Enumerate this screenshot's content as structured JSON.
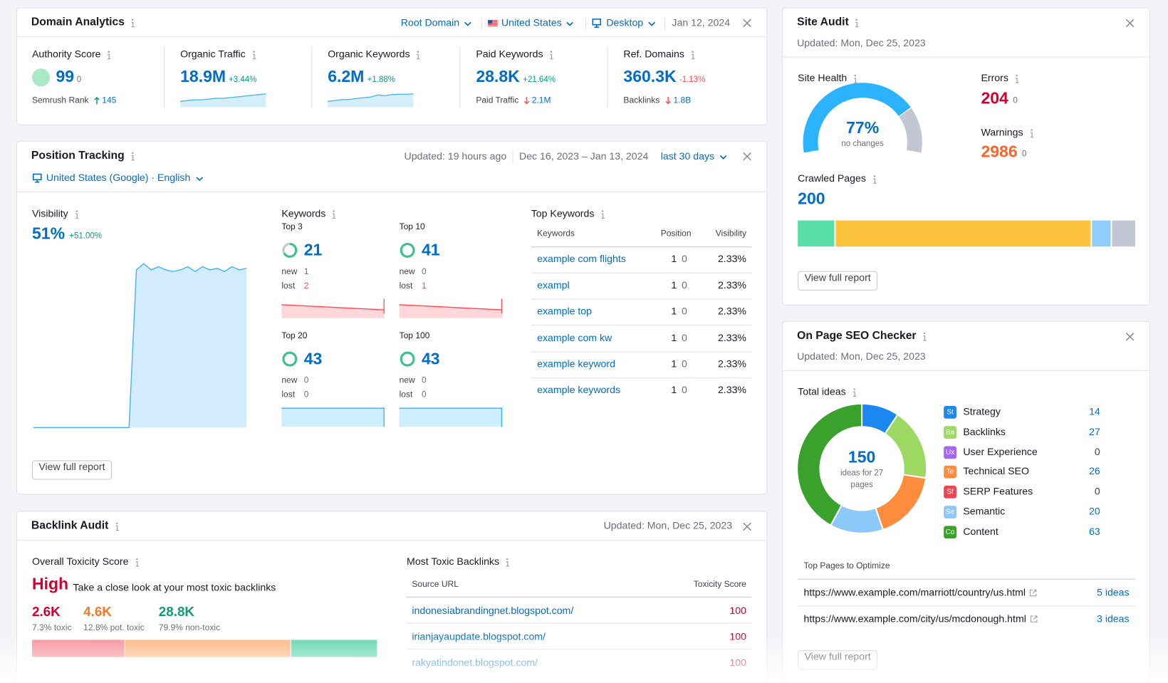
{
  "domain_analytics": {
    "title": "Domain Analytics",
    "filters": [
      "Root Domain",
      "United States",
      "Desktop"
    ],
    "date": "Jan 12, 2024",
    "metrics": [
      {
        "label": "Authority Score",
        "value": "99",
        "delta": "0",
        "sub_label": "Semrush Rank",
        "sub_direction": "up",
        "sub_value": "145"
      },
      {
        "label": "Organic Traffic",
        "value": "18.9M",
        "delta": "+3.44%",
        "trend": [
          7,
          7.5,
          8,
          8,
          8.5,
          9,
          9,
          9.5,
          10,
          10.5,
          11,
          11.5,
          12
        ]
      },
      {
        "label": "Organic Keywords",
        "value": "6.2M",
        "delta": "+1.88%",
        "trend": [
          10,
          10.2,
          10.5,
          10.5,
          10.8,
          11,
          11.2,
          11.8,
          11.6,
          11.9,
          12,
          12,
          12.1
        ]
      },
      {
        "label": "Paid Keywords",
        "value": "28.8K",
        "delta": "+21.64%",
        "sub_label": "Paid Traffic",
        "sub_direction": "down",
        "sub_value": "2.1M"
      },
      {
        "label": "Ref. Domains",
        "value": "360.3K",
        "delta": "-1.13%",
        "sub_label": "Backlinks",
        "sub_direction": "down",
        "sub_value": "1.8B"
      }
    ]
  },
  "position_tracking": {
    "title": "Position Tracking",
    "updated": "Updated: 19 hours ago",
    "date_range": "Dec 16, 2023 – Jan 13, 2024",
    "period": "last 30 days",
    "location": "United States (Google) · English",
    "visibility": {
      "label": "Visibility",
      "value": "51%",
      "delta": "+51.00%",
      "chart": {
        "values": [
          0,
          0,
          0,
          0,
          0,
          0,
          0,
          0,
          0,
          0,
          0,
          0,
          0,
          0,
          50,
          52,
          50,
          51,
          50,
          49.5,
          50,
          51,
          49.5,
          51,
          50,
          50.5,
          49.5,
          51,
          50,
          50.5
        ],
        "ylim": [
          0,
          60
        ]
      }
    },
    "keywords": {
      "label": "Keywords",
      "new_label": "new",
      "lost_label": "lost",
      "groups": [
        {
          "name": "Top 3",
          "value": "21",
          "new": "1",
          "lost": "2",
          "trend": [
            22,
            21
          ]
        },
        {
          "name": "Top 10",
          "value": "41",
          "new": "0",
          "lost": "1",
          "trend": [
            42,
            41
          ]
        },
        {
          "name": "Top 20",
          "value": "43",
          "new": "0",
          "lost": "0",
          "trend": [
            43,
            43
          ]
        },
        {
          "name": "Top 100",
          "value": "43",
          "new": "0",
          "lost": "0",
          "trend": [
            43,
            43
          ]
        }
      ]
    },
    "top_keywords": {
      "label": "Top Keywords",
      "columns": [
        "Keywords",
        "Position",
        "Visibility"
      ],
      "rows": [
        {
          "keyword": "example com flights",
          "position": "1",
          "change": "0",
          "visibility": "2.33%"
        },
        {
          "keyword": "exampl",
          "position": "1",
          "change": "0",
          "visibility": "2.33%"
        },
        {
          "keyword": "example top",
          "position": "1",
          "change": "0",
          "visibility": "2.33%"
        },
        {
          "keyword": "example com kw",
          "position": "1",
          "change": "0",
          "visibility": "2.33%"
        },
        {
          "keyword": "example keyword",
          "position": "1",
          "change": "0",
          "visibility": "2.33%"
        },
        {
          "keyword": "example keywords",
          "position": "1",
          "change": "0",
          "visibility": "2.33%"
        }
      ]
    },
    "button": "View full report"
  },
  "backlink_audit": {
    "title": "Backlink Audit",
    "updated": "Updated: Mon, Dec 25, 2023",
    "toxicity": {
      "label": "Overall Toxicity Score",
      "level": "High",
      "note": "Take a close look at your most toxic backlinks",
      "stats": [
        {
          "value": "2.6K",
          "label": "7.3% toxic",
          "color": "#d1002f"
        },
        {
          "value": "4.6K",
          "label": "12.8% pot. toxic",
          "color": "#f7782a"
        },
        {
          "value": "28.8K",
          "label": "79.9% non-toxic",
          "color": "#139a74"
        }
      ]
    },
    "most_toxic": {
      "label": "Most Toxic Backlinks",
      "columns": [
        "Source URL",
        "Toxicity Score"
      ],
      "rows": [
        {
          "url": "indonesiabrandingnet.blogspot.com/",
          "score": "100"
        },
        {
          "url": "irianjayaupdate.blogspot.com/",
          "score": "100"
        },
        {
          "url": "rakyatindonet.blogspot.com/",
          "score": "100"
        }
      ]
    }
  },
  "site_audit": {
    "title": "Site Audit",
    "updated": "Updated: Mon, Dec 25, 2023",
    "site_health": {
      "label": "Site Health",
      "value": 77,
      "value_label": "77%",
      "note": "no changes"
    },
    "errors": {
      "label": "Errors",
      "value": "204",
      "delta": "0"
    },
    "warnings": {
      "label": "Warnings",
      "value": "2986",
      "delta": "0"
    },
    "crawled_pages": {
      "label": "Crawled Pages",
      "value": "200",
      "segments": [
        22,
        153,
        11,
        14
      ],
      "colors": [
        "#59dea8",
        "#fdc23c",
        "#8fcdfb",
        "#c3c7d3"
      ]
    },
    "button": "View full report"
  },
  "on_page_seo": {
    "title": "On Page SEO Checker",
    "updated": "Updated: Mon, Dec 25, 2023",
    "total_ideas": {
      "label": "Total ideas",
      "value": "150",
      "note": "ideas for 27 pages"
    },
    "categories": [
      {
        "abbr": "St",
        "name": "Strategy",
        "value": 14,
        "color": "#1c87ee"
      },
      {
        "abbr": "Ba",
        "name": "Backlinks",
        "value": 27,
        "color": "#9dd862"
      },
      {
        "abbr": "Ux",
        "name": "User Experience",
        "value": 0,
        "color": "#a566f4"
      },
      {
        "abbr": "Te",
        "name": "Technical SEO",
        "value": 26,
        "color": "#ff8b3d"
      },
      {
        "abbr": "Sf",
        "name": "SERP Features",
        "value": 0,
        "color": "#f04452"
      },
      {
        "abbr": "Se",
        "name": "Semantic",
        "value": 20,
        "color": "#8dc8fa"
      },
      {
        "abbr": "Co",
        "name": "Content",
        "value": 63,
        "color": "#3aa22c"
      }
    ],
    "top_pages": {
      "label": "Top Pages to Optimize",
      "rows": [
        {
          "url": "https://www.example.com/marriott/country/us.html",
          "ideas": "5 ideas"
        },
        {
          "url": "https://www.example.com/city/us/mcdonough.html",
          "ideas": "3 ideas"
        }
      ]
    },
    "button": "View full report"
  }
}
